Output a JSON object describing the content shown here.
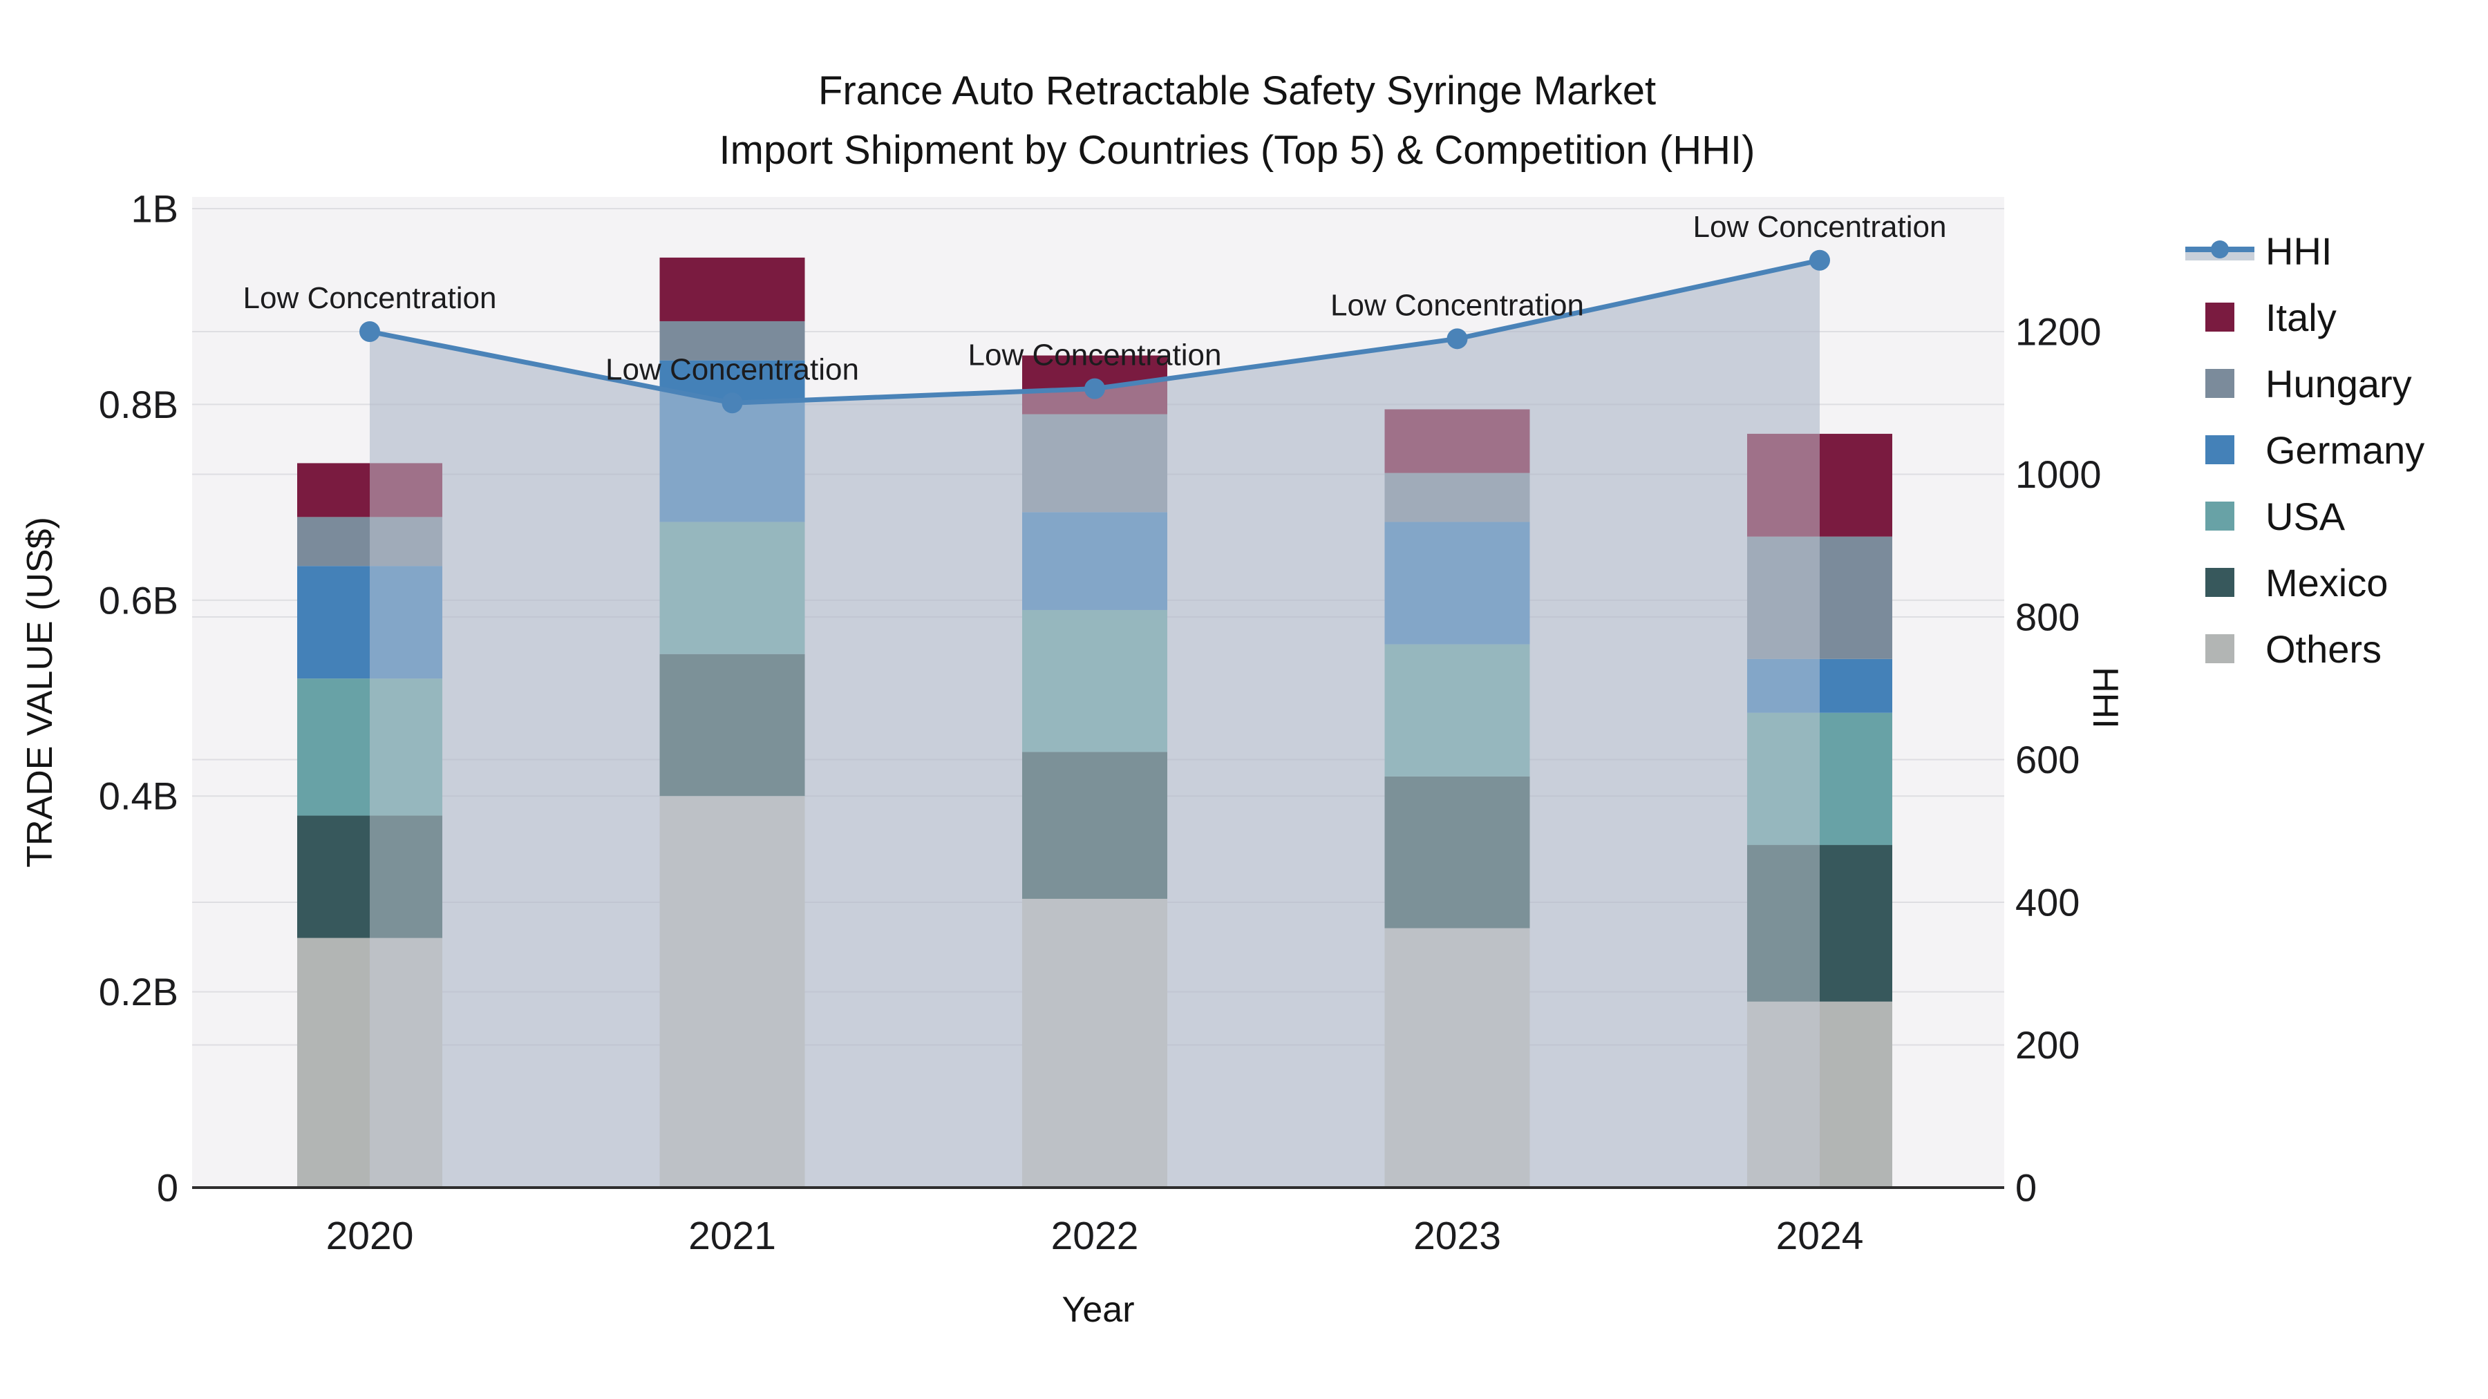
{
  "title": {
    "line1": "France Auto Retractable Safety Syringe Market",
    "line2": "Import Shipment by Countries (Top 5) & Competition (HHI)"
  },
  "axes": {
    "x": {
      "title": "Year",
      "categories": [
        "2020",
        "2021",
        "2022",
        "2023",
        "2024"
      ]
    },
    "y_left": {
      "title": "TRADE VALUE (US$)",
      "tick_labels": [
        "0",
        "0.2B",
        "0.4B",
        "0.6B",
        "0.8B",
        "1B"
      ],
      "tick_values": [
        0,
        0.2,
        0.4,
        0.6,
        0.8,
        1.0
      ]
    },
    "y_right": {
      "title": "HHI",
      "tick_labels": [
        "0",
        "200",
        "400",
        "600",
        "800",
        "1000",
        "1200"
      ],
      "tick_values": [
        0,
        200,
        400,
        600,
        800,
        1000,
        1200
      ]
    }
  },
  "chart_data": {
    "type": "bar",
    "stacked": true,
    "categories": [
      "2020",
      "2021",
      "2022",
      "2023",
      "2024"
    ],
    "unit": "billions US$",
    "series": [
      {
        "name": "Italy",
        "color": "#7a1b40",
        "values": [
          0.055,
          0.065,
          0.06,
          0.065,
          0.105
        ]
      },
      {
        "name": "Hungary",
        "color": "#7b8b9b",
        "values": [
          0.05,
          0.04,
          0.1,
          0.05,
          0.125
        ]
      },
      {
        "name": "Germany",
        "color": "#4481b8",
        "values": [
          0.115,
          0.165,
          0.1,
          0.125,
          0.055
        ]
      },
      {
        "name": "USA",
        "color": "#68a2a6",
        "values": [
          0.14,
          0.135,
          0.145,
          0.135,
          0.135
        ]
      },
      {
        "name": "Mexico",
        "color": "#37585c",
        "values": [
          0.125,
          0.145,
          0.15,
          0.155,
          0.16
        ]
      },
      {
        "name": "Others",
        "color": "#b2b5b4",
        "values": [
          0.255,
          0.4,
          0.295,
          0.265,
          0.19
        ]
      }
    ],
    "stack_order_bottom_to_top": [
      "Others",
      "Mexico",
      "USA",
      "Germany",
      "Hungary",
      "Italy"
    ],
    "bar_totals": [
      0.74,
      0.95,
      0.85,
      0.795,
      0.77
    ],
    "line_series": {
      "name": "HHI",
      "axis": "right",
      "color": "#4a83b8",
      "area_fill": "#c9cfda",
      "values": [
        1200,
        1100,
        1120,
        1190,
        1300
      ]
    },
    "annotations": [
      {
        "category": "2020",
        "text": "Low Concentration"
      },
      {
        "category": "2021",
        "text": "Low Concentration"
      },
      {
        "category": "2022",
        "text": "Low Concentration"
      },
      {
        "category": "2023",
        "text": "Low Concentration"
      },
      {
        "category": "2024",
        "text": "Low Concentration"
      }
    ],
    "title": "France Auto Retractable Safety Syringe Market Import Shipment by Countries (Top 5) & Competition (HHI)",
    "xlabel": "Year",
    "ylabel_left": "TRADE VALUE (US$)",
    "ylabel_right": "HHI",
    "ylim_left": [
      0,
      1.012
    ],
    "ylim_right": [
      0,
      1390
    ],
    "grid": true,
    "legend_position": "right"
  },
  "legend": {
    "items": [
      {
        "label": "HHI",
        "type": "line",
        "color": "#4a83b8",
        "band_color": "#c9d0da"
      },
      {
        "label": "Italy",
        "type": "swatch",
        "color": "#7a1b40"
      },
      {
        "label": "Hungary",
        "type": "swatch",
        "color": "#7b8b9b"
      },
      {
        "label": "Germany",
        "type": "swatch",
        "color": "#4481b8"
      },
      {
        "label": "USA",
        "type": "swatch",
        "color": "#68a2a6"
      },
      {
        "label": "Mexico",
        "type": "swatch",
        "color": "#37585c"
      },
      {
        "label": "Others",
        "type": "swatch",
        "color": "#b2b5b4"
      }
    ]
  },
  "colors": {
    "plot_bg": "#f4f3f5",
    "page_bg": "#ffffff",
    "gridline": "rgba(110,115,130,0.16)",
    "axis_line": "#2e2e2e",
    "text": "#141414",
    "annotation_text": "#141414",
    "hhi_line": "#4a83b8",
    "hhi_area": "#c9cfda",
    "hhi_area_overlay": "rgba(201,207,218,0.48)"
  }
}
